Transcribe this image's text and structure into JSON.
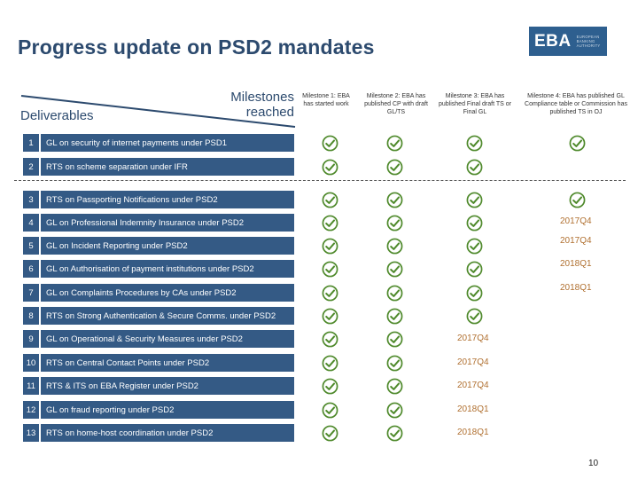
{
  "title": "Progress update on PSD2 mandates",
  "logo": {
    "main": "EBA",
    "sub": "EUROPEAN BANKING AUTHORITY"
  },
  "header": {
    "milestones_label": "Milestones reached",
    "deliverables_label": "Deliverables"
  },
  "milestones": [
    "Milestone 1: EBA has started work",
    "Milestone 2: EBA has published CP with draft GL/TS",
    "Milestone 3: EBA has published Final draft TS or Final GL",
    "Milestone 4: EBA has published GL Compliance table or Commission has published TS in OJ"
  ],
  "rows": [
    {
      "num": "1",
      "label": "GL on security of internet payments under PSD1",
      "checks": [
        true,
        true,
        true,
        true
      ],
      "due": ""
    },
    {
      "num": "2",
      "label": "RTS on scheme separation under IFR",
      "checks": [
        true,
        true,
        true,
        false
      ],
      "due": ""
    },
    {
      "num": "3",
      "label": "RTS on Passporting Notifications under PSD2",
      "checks": [
        true,
        true,
        true,
        true
      ],
      "due": ""
    },
    {
      "num": "4",
      "label": "GL on Professional Indemnity Insurance under PSD2",
      "checks": [
        true,
        true,
        true,
        false
      ],
      "due": "2017Q4"
    },
    {
      "num": "5",
      "label": "GL on Incident Reporting under PSD2",
      "checks": [
        true,
        true,
        true,
        false
      ],
      "due": "2017Q4"
    },
    {
      "num": "6",
      "label": "GL on Authorisation of payment institutions under PSD2",
      "checks": [
        true,
        true,
        true,
        false
      ],
      "due": "2018Q1"
    },
    {
      "num": "7",
      "label": "GL on Complaints Procedures by CAs under PSD2",
      "checks": [
        true,
        true,
        true,
        false
      ],
      "due": "2018Q1"
    },
    {
      "num": "8",
      "label": "RTS on Strong Authentication & Secure Comms. under PSD2",
      "checks": [
        true,
        true,
        true,
        false
      ],
      "due": ""
    },
    {
      "num": "9",
      "label": "GL on Operational & Security Measures under PSD2",
      "checks": [
        true,
        true,
        false,
        false
      ],
      "due": "2017Q4"
    },
    {
      "num": "10",
      "label": "RTS on Central Contact Points under PSD2",
      "checks": [
        true,
        true,
        false,
        false
      ],
      "due": "2017Q4"
    },
    {
      "num": "11",
      "label": "RTS & ITS on EBA Register under PSD2",
      "checks": [
        true,
        true,
        false,
        false
      ],
      "due": "2017Q4"
    },
    {
      "num": "12",
      "label": "GL on fraud reporting under PSD2",
      "checks": [
        true,
        true,
        false,
        false
      ],
      "due": "2018Q1"
    },
    {
      "num": "13",
      "label": "RTS on home-host coordination under PSD2",
      "checks": [
        true,
        true,
        false,
        false
      ],
      "due": "2018Q1"
    }
  ],
  "colors": {
    "bar": "#345a85",
    "check": "#4f8a2c",
    "due": "#b07030",
    "title": "#2c4a6e"
  },
  "page_number": "10"
}
